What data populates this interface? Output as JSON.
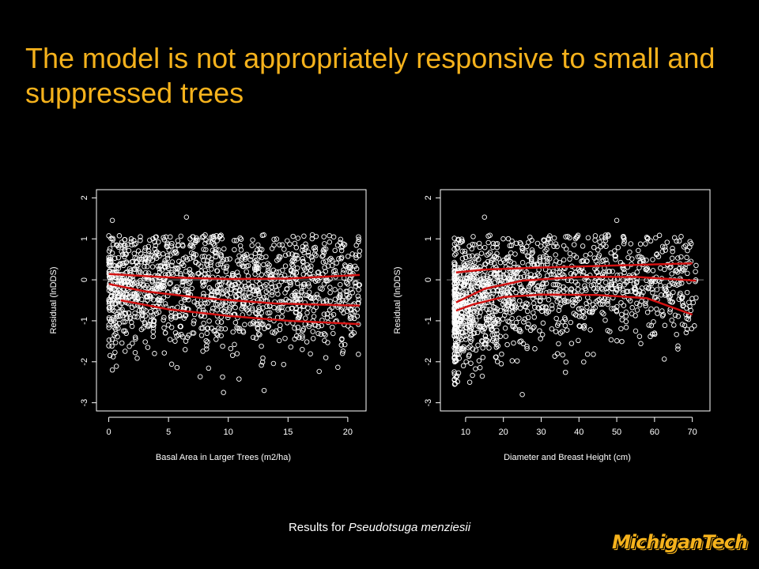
{
  "title": "The model is not appropriately responsive to small and suppressed trees",
  "caption": {
    "prefix": "Results for ",
    "species": "Pseudotsuga menziesii"
  },
  "logo": {
    "text": "MichiganTech"
  },
  "colors": {
    "title": "#f5b21c",
    "curve": "#d31212",
    "points": "#ffffff",
    "zero_line": "#808080",
    "background": "#000000"
  },
  "chart_data": [
    {
      "type": "scatter",
      "xlabel": "Basal Area in Larger Trees (m2/ha)",
      "ylabel": "Residual (lnDDS)",
      "xlim": [
        -0.5,
        21
      ],
      "ylim": [
        -3.2,
        2.2
      ],
      "xticks": [
        0,
        5,
        10,
        15,
        20
      ],
      "yticks": [
        -3,
        -2,
        -1,
        0,
        1,
        2
      ],
      "reference_line_y": 0,
      "point_cloud": {
        "x_range": [
          0,
          21
        ],
        "center": -0.25,
        "spread": 0.75,
        "highlights": [
          [
            0.3,
            1.45
          ],
          [
            6.5,
            1.53
          ],
          [
            18,
            1.05
          ],
          [
            9.6,
            -2.75
          ],
          [
            0.3,
            -2.2
          ],
          [
            13,
            -2.7
          ]
        ]
      },
      "curves": [
        {
          "label": "upper",
          "points": [
            [
              0,
              0.14
            ],
            [
              5,
              0.06
            ],
            [
              10,
              0.02
            ],
            [
              15,
              0.03
            ],
            [
              21,
              0.12
            ]
          ]
        },
        {
          "label": "middle",
          "points": [
            [
              0,
              -0.1
            ],
            [
              3,
              -0.28
            ],
            [
              8,
              -0.45
            ],
            [
              14,
              -0.58
            ],
            [
              21,
              -0.63
            ]
          ]
        },
        {
          "label": "lower",
          "points": [
            [
              1,
              -0.5
            ],
            [
              5,
              -0.72
            ],
            [
              10,
              -0.88
            ],
            [
              15,
              -1.0
            ],
            [
              21,
              -1.08
            ]
          ]
        }
      ]
    },
    {
      "type": "scatter",
      "xlabel": "Diameter and Breast Height (cm)",
      "ylabel": "Residual (lnDDS)",
      "xlim": [
        5,
        73
      ],
      "ylim": [
        -3.2,
        2.2
      ],
      "xticks": [
        10,
        20,
        30,
        40,
        50,
        60,
        70
      ],
      "yticks": [
        -3,
        -2,
        -1,
        0,
        1,
        2
      ],
      "reference_line_y": 0,
      "point_cloud": {
        "x_range": [
          7,
          71
        ],
        "center": -0.15,
        "spread": 0.7,
        "highlights": [
          [
            15,
            1.53
          ],
          [
            50,
            1.45
          ],
          [
            25,
            -2.8
          ],
          [
            55,
            -1.25
          ],
          [
            60,
            -1.3
          ],
          [
            71,
            0.35
          ],
          [
            69,
            -0.85
          ]
        ]
      },
      "curves": [
        {
          "label": "upper",
          "points": [
            [
              7.5,
              0.18
            ],
            [
              15,
              0.25
            ],
            [
              30,
              0.3
            ],
            [
              50,
              0.35
            ],
            [
              70,
              0.4
            ]
          ]
        },
        {
          "label": "middle",
          "points": [
            [
              7.5,
              -0.55
            ],
            [
              15,
              -0.22
            ],
            [
              25,
              -0.02
            ],
            [
              40,
              0.07
            ],
            [
              55,
              0.07
            ],
            [
              71,
              -0.02
            ]
          ]
        },
        {
          "label": "lower",
          "points": [
            [
              7.5,
              -0.75
            ],
            [
              12,
              -0.6
            ],
            [
              20,
              -0.42
            ],
            [
              30,
              -0.36
            ],
            [
              45,
              -0.37
            ],
            [
              58,
              -0.45
            ],
            [
              70,
              -0.85
            ]
          ]
        }
      ]
    }
  ]
}
